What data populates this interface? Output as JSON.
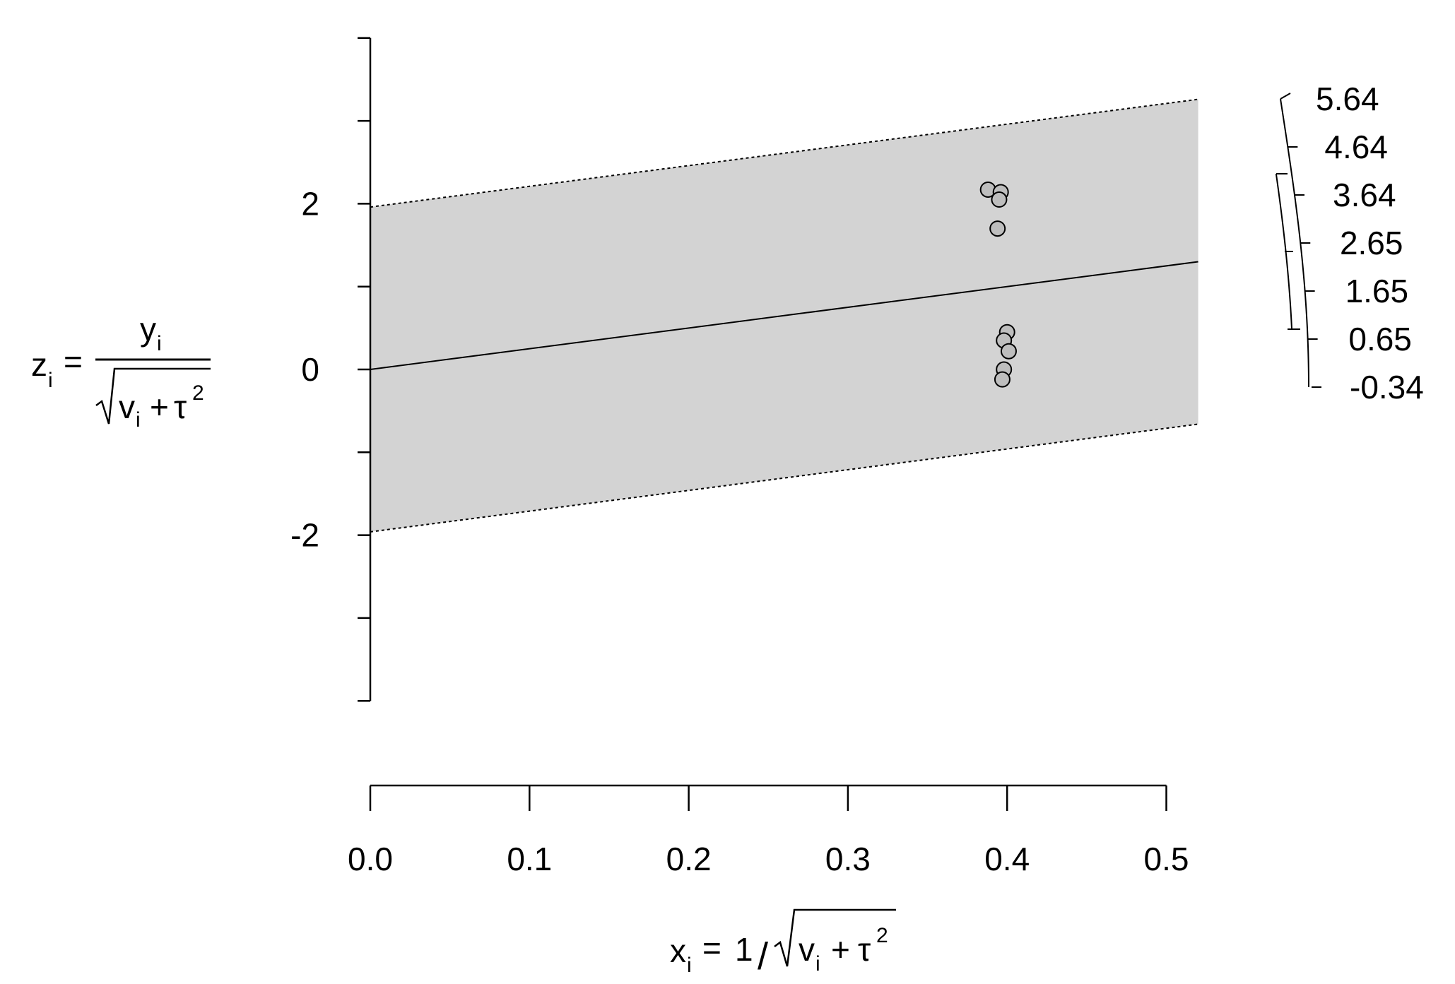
{
  "chart_data": {
    "type": "scatter",
    "title": "",
    "ylabel": {
      "lhs": "z",
      "lhs_sub": "i",
      "eq": "=",
      "num": "y",
      "num_sub": "i",
      "den_v": "v",
      "den_v_sub": "i",
      "den_plus": "+",
      "den_tau": "τ",
      "den_tau_sup": "2"
    },
    "xlabel": {
      "lhs": "x",
      "lhs_sub": "i",
      "eq": "=",
      "one": "1",
      "slash": "/",
      "v": "v",
      "v_sub": "i",
      "plus": "+",
      "tau": "τ",
      "tau_sup": "2"
    },
    "xlim": [
      0,
      0.52
    ],
    "ylim": [
      -4,
      4
    ],
    "x_ticks": [
      0.0,
      0.1,
      0.2,
      0.3,
      0.4,
      0.5
    ],
    "x_tick_labels": [
      "0.0",
      "0.1",
      "0.2",
      "0.3",
      "0.4",
      "0.5"
    ],
    "y_ticks": [
      -4,
      -3,
      -2,
      -1,
      0,
      1,
      2,
      3,
      4
    ],
    "y_tick_labels": [
      {
        "value": -2,
        "label": "-2"
      },
      {
        "value": 0,
        "label": "0"
      },
      {
        "value": 2,
        "label": "2"
      }
    ],
    "regression_line": {
      "slope": 2.5,
      "intercept": 0.0,
      "x_range": [
        0,
        0.52
      ]
    },
    "confidence_band": {
      "halfwidth": 1.96
    },
    "radial_scale": {
      "labels": [
        "5.64",
        "4.64",
        "3.64",
        "2.65",
        "1.65",
        "0.65",
        "-0.34"
      ],
      "ci_bracket": {
        "from_label": "3.64",
        "to_label": "1.65"
      }
    },
    "points": [
      {
        "x": 0.388,
        "y": 2.17
      },
      {
        "x": 0.396,
        "y": 2.14
      },
      {
        "x": 0.395,
        "y": 2.05
      },
      {
        "x": 0.394,
        "y": 1.7
      },
      {
        "x": 0.4,
        "y": 0.45
      },
      {
        "x": 0.398,
        "y": 0.35
      },
      {
        "x": 0.401,
        "y": 0.22
      },
      {
        "x": 0.398,
        "y": 0.0
      },
      {
        "x": 0.397,
        "y": -0.12
      }
    ],
    "colors": {
      "band_fill": "#d3d3d3",
      "point_fill": "#bebebe",
      "line": "#000000"
    },
    "grid": false
  }
}
